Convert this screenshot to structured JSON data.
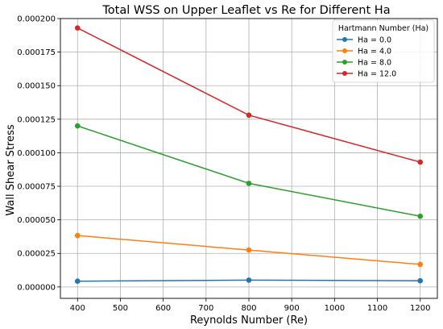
{
  "chart_data": {
    "type": "line",
    "title": "Total WSS on Upper Leaflet vs Re for Different Ha",
    "xlabel": "Reynolds Number (Re)",
    "ylabel": "Wall Shear Stress",
    "x": [
      400,
      800,
      1200
    ],
    "xlim": [
      360,
      1240
    ],
    "ylim": [
      -8.5e-06,
      0.0002
    ],
    "x_ticks": [
      400,
      500,
      600,
      700,
      800,
      900,
      1000,
      1100,
      1200
    ],
    "x_tick_labels": [
      "400",
      "500",
      "600",
      "700",
      "800",
      "900",
      "1000",
      "1100",
      "1200"
    ],
    "y_ticks": [
      0,
      2.5e-05,
      5e-05,
      7.5e-05,
      0.0001,
      0.000125,
      0.00015,
      0.000175,
      0.0002
    ],
    "y_tick_labels": [
      "0.000000",
      "0.000025",
      "0.000050",
      "0.000075",
      "0.000100",
      "0.000125",
      "0.000150",
      "0.000175",
      "0.000200"
    ],
    "grid": true,
    "legend": {
      "title": "Hartmann Number (Ha)",
      "placement": "top-right"
    },
    "series": [
      {
        "name": "Ha = 0.0",
        "color": "#1f77b4",
        "values": [
          4.3e-06,
          5.1e-06,
          4.6e-06
        ]
      },
      {
        "name": "Ha = 4.0",
        "color": "#ff7f0e",
        "values": [
          3.83e-05,
          2.75e-05,
          1.68e-05
        ]
      },
      {
        "name": "Ha = 8.0",
        "color": "#2ca02c",
        "values": [
          0.00012,
          7.72e-05,
          5.27e-05
        ]
      },
      {
        "name": "Ha = 12.0",
        "color": "#d62728",
        "values": [
          0.000193,
          0.000128,
          9.3e-05
        ]
      }
    ]
  }
}
